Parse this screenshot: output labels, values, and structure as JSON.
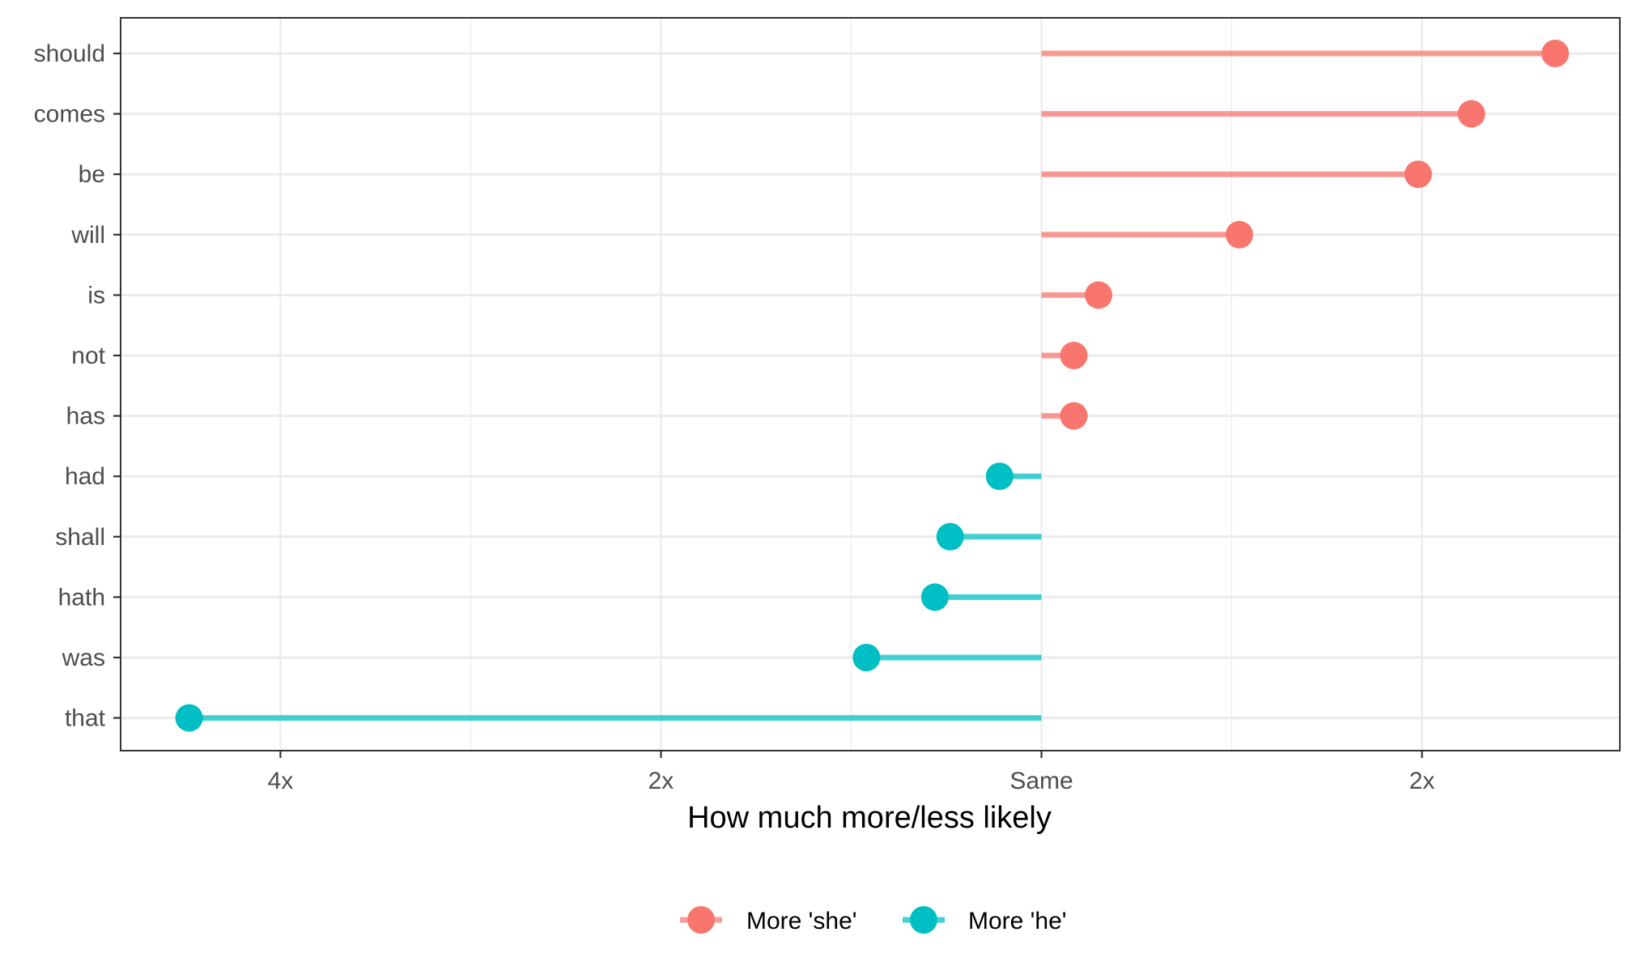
{
  "chart_data": {
    "type": "lollipop",
    "title": "",
    "xlabel": "How much more/less likely",
    "ylabel": "",
    "x_scale": "log2",
    "x_ticks": [
      {
        "value": -2,
        "label": "4x"
      },
      {
        "value": -1,
        "label": "2x"
      },
      {
        "value": 0,
        "label": "Same"
      },
      {
        "value": 1,
        "label": "2x"
      }
    ],
    "xlim": [
      -2.42,
      1.52
    ],
    "grid": true,
    "legend_position": "bottom",
    "categories": [
      "should",
      "comes",
      "be",
      "will",
      "is",
      "not",
      "has",
      "had",
      "shall",
      "hath",
      "was",
      "that"
    ],
    "values": [
      1.35,
      1.13,
      0.99,
      0.52,
      0.15,
      0.085,
      0.085,
      -0.11,
      -0.24,
      -0.28,
      -0.46,
      -2.24
    ],
    "groups": [
      "More 'she'",
      "More 'she'",
      "More 'she'",
      "More 'she'",
      "More 'she'",
      "More 'she'",
      "More 'she'",
      "More 'he'",
      "More 'he'",
      "More 'he'",
      "More 'he'",
      "More 'he'"
    ],
    "series": [
      {
        "name": "More 'she'",
        "color": "#F8766D"
      },
      {
        "name": "More 'he'",
        "color": "#00BFC4"
      }
    ]
  }
}
